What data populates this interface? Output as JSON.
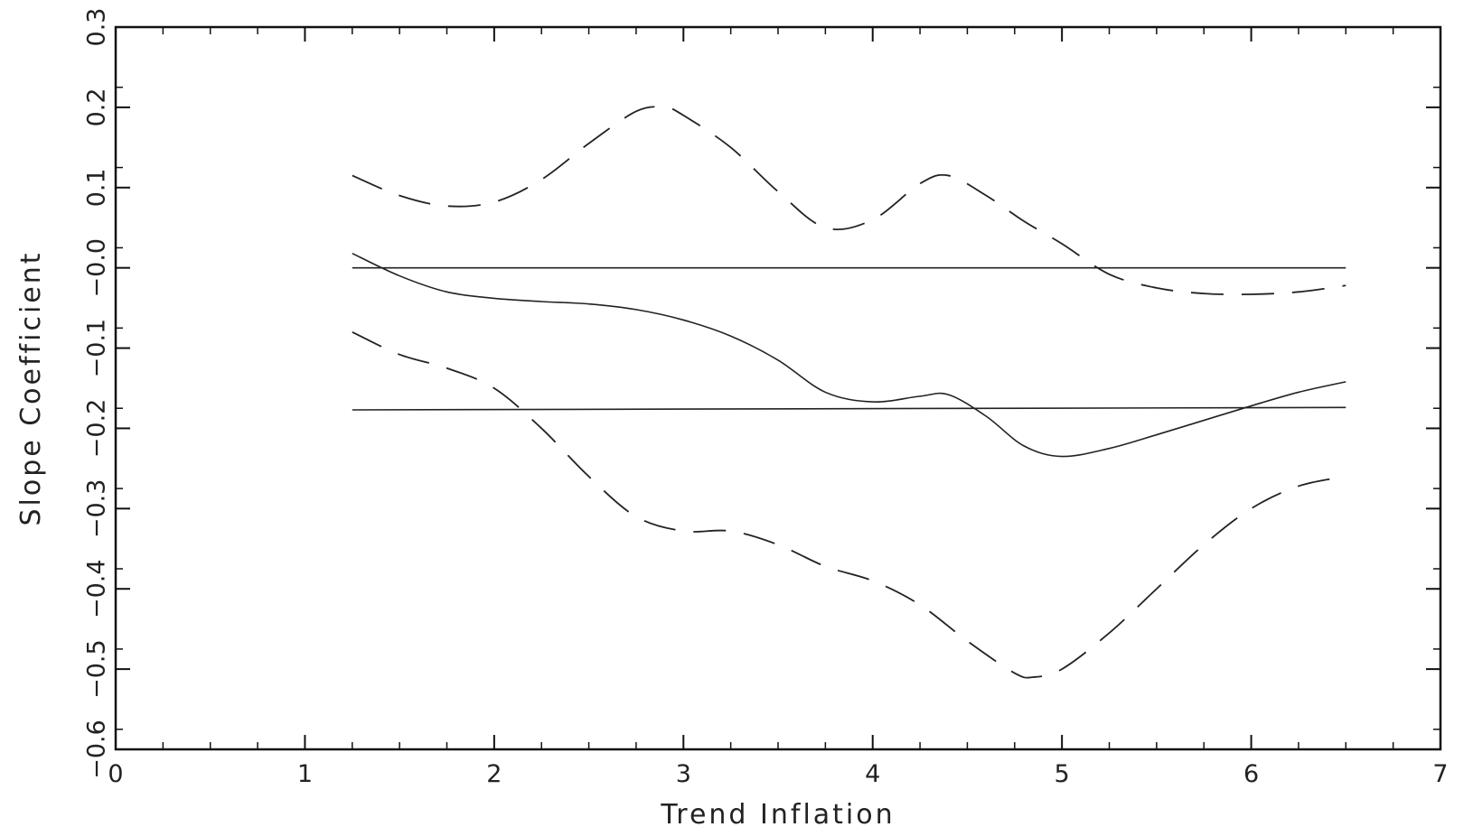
{
  "chart_data": {
    "type": "line",
    "title": "",
    "xlabel": "Trend Inflation",
    "ylabel": "Slope Coefficient",
    "xlim": [
      0,
      7
    ],
    "ylim": [
      -0.6,
      0.3
    ],
    "xticks": [
      0,
      1,
      2,
      3,
      4,
      5,
      6,
      7
    ],
    "xtick_labels": [
      "0",
      "1",
      "2",
      "3",
      "4",
      "5",
      "6",
      "7"
    ],
    "yticks": [
      -0.6,
      -0.5,
      -0.4,
      -0.3,
      -0.2,
      -0.1,
      0.0,
      0.1,
      0.2,
      0.3
    ],
    "ytick_labels": [
      "-0.6",
      "-0.5",
      "-0.4",
      "-0.3",
      "-0.2",
      "-0.1",
      "-0.0",
      "0.1",
      "0.2",
      "0.3"
    ],
    "grid": false,
    "legend": "none",
    "colors": {
      "line": "#222222",
      "axis": "#111111"
    },
    "series": [
      {
        "style": "solid",
        "x": [
          1.25,
          1.5,
          1.75,
          2.0,
          2.25,
          2.5,
          2.75,
          3.0,
          3.25,
          3.5,
          3.75,
          4.0,
          4.25,
          4.4,
          4.6,
          4.8,
          5.0,
          5.25,
          5.5,
          5.75,
          6.0,
          6.25,
          6.5
        ],
        "y": [
          0.018,
          -0.01,
          -0.03,
          -0.038,
          -0.042,
          -0.045,
          -0.052,
          -0.065,
          -0.085,
          -0.115,
          -0.155,
          -0.167,
          -0.16,
          -0.158,
          -0.185,
          -0.222,
          -0.235,
          -0.225,
          -0.208,
          -0.19,
          -0.172,
          -0.155,
          -0.142
        ]
      },
      {
        "style": "dashed",
        "x": [
          1.25,
          1.5,
          1.75,
          2.0,
          2.25,
          2.5,
          2.75,
          2.9,
          3.0,
          3.25,
          3.5,
          3.75,
          4.0,
          4.25,
          4.4,
          4.6,
          4.8,
          5.0,
          5.25,
          5.5,
          5.75,
          6.0,
          6.25,
          6.5
        ],
        "y": [
          0.115,
          0.09,
          0.077,
          0.082,
          0.11,
          0.155,
          0.195,
          0.2,
          0.19,
          0.15,
          0.095,
          0.05,
          0.06,
          0.105,
          0.115,
          0.09,
          0.058,
          0.03,
          -0.008,
          -0.025,
          -0.032,
          -0.033,
          -0.03,
          -0.022
        ]
      },
      {
        "style": "dashed",
        "x": [
          1.25,
          1.5,
          1.75,
          2.0,
          2.25,
          2.5,
          2.75,
          3.0,
          3.25,
          3.5,
          3.75,
          4.0,
          4.25,
          4.5,
          4.75,
          4.85,
          5.0,
          5.25,
          5.5,
          5.75,
          6.0,
          6.25,
          6.5
        ],
        "y": [
          -0.08,
          -0.108,
          -0.125,
          -0.15,
          -0.2,
          -0.26,
          -0.31,
          -0.328,
          -0.328,
          -0.345,
          -0.372,
          -0.39,
          -0.42,
          -0.465,
          -0.505,
          -0.51,
          -0.5,
          -0.455,
          -0.4,
          -0.345,
          -0.3,
          -0.272,
          -0.26
        ]
      },
      {
        "style": "solid",
        "x": [
          1.25,
          6.5
        ],
        "y": [
          0.0,
          0.0
        ]
      },
      {
        "style": "solid",
        "x": [
          1.25,
          6.5
        ],
        "y": [
          -0.177,
          -0.174
        ]
      }
    ]
  }
}
